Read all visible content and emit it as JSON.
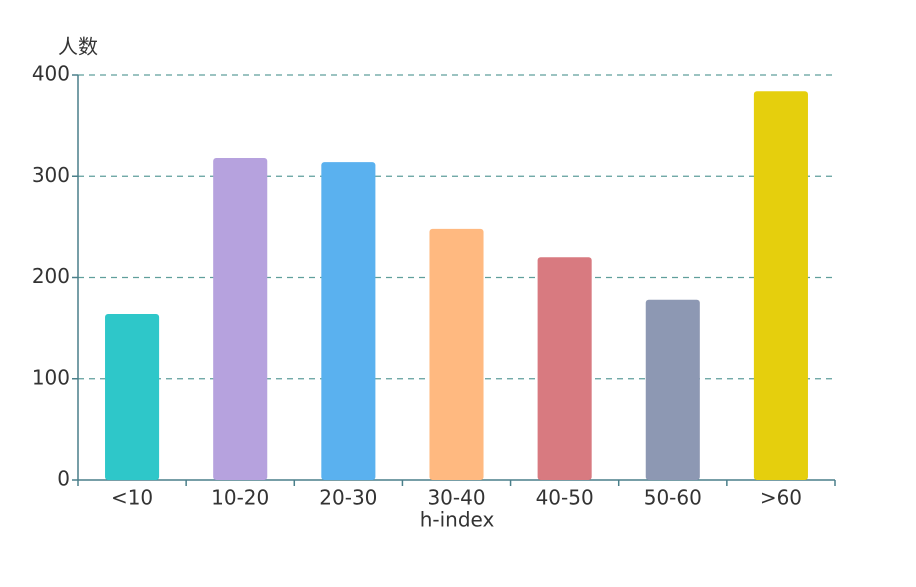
{
  "chart_data": {
    "type": "bar",
    "y_label": "人数",
    "x_label": "h-index",
    "categories": [
      "<10",
      "10-20",
      "20-30",
      "30-40",
      "40-50",
      "50-60",
      ">60"
    ],
    "values": [
      164,
      318,
      314,
      248,
      220,
      178,
      384
    ],
    "colors": [
      "#2ec7c9",
      "#b6a2de",
      "#5ab1ef",
      "#ffb980",
      "#d87a80",
      "#8d98b3",
      "#e5cf0d"
    ],
    "ylim": [
      0,
      400
    ],
    "yticks": [
      0,
      100,
      200,
      300,
      400
    ],
    "grid": true
  }
}
